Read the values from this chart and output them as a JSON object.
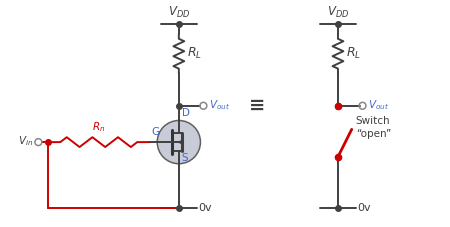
{
  "bg_color": "#ffffff",
  "line_color": "#404040",
  "red_color": "#cc0000",
  "blue_color": "#4466cc",
  "mosfet_fill": "#c8ccd8",
  "mosfet_edge": "#606060",
  "vdd_label": "$V_{DD}$",
  "rl_label": "$R_L$",
  "vout_label": "$V_{out}$",
  "vin_label": "$V_{in}$",
  "rin_label": "$R_n$",
  "g_label": "G",
  "d_label": "D",
  "s_label": "S",
  "ov_label": "0v",
  "switch_label": "Switch\n“open”",
  "figsize": [
    4.5,
    2.27
  ],
  "dpi": 100
}
